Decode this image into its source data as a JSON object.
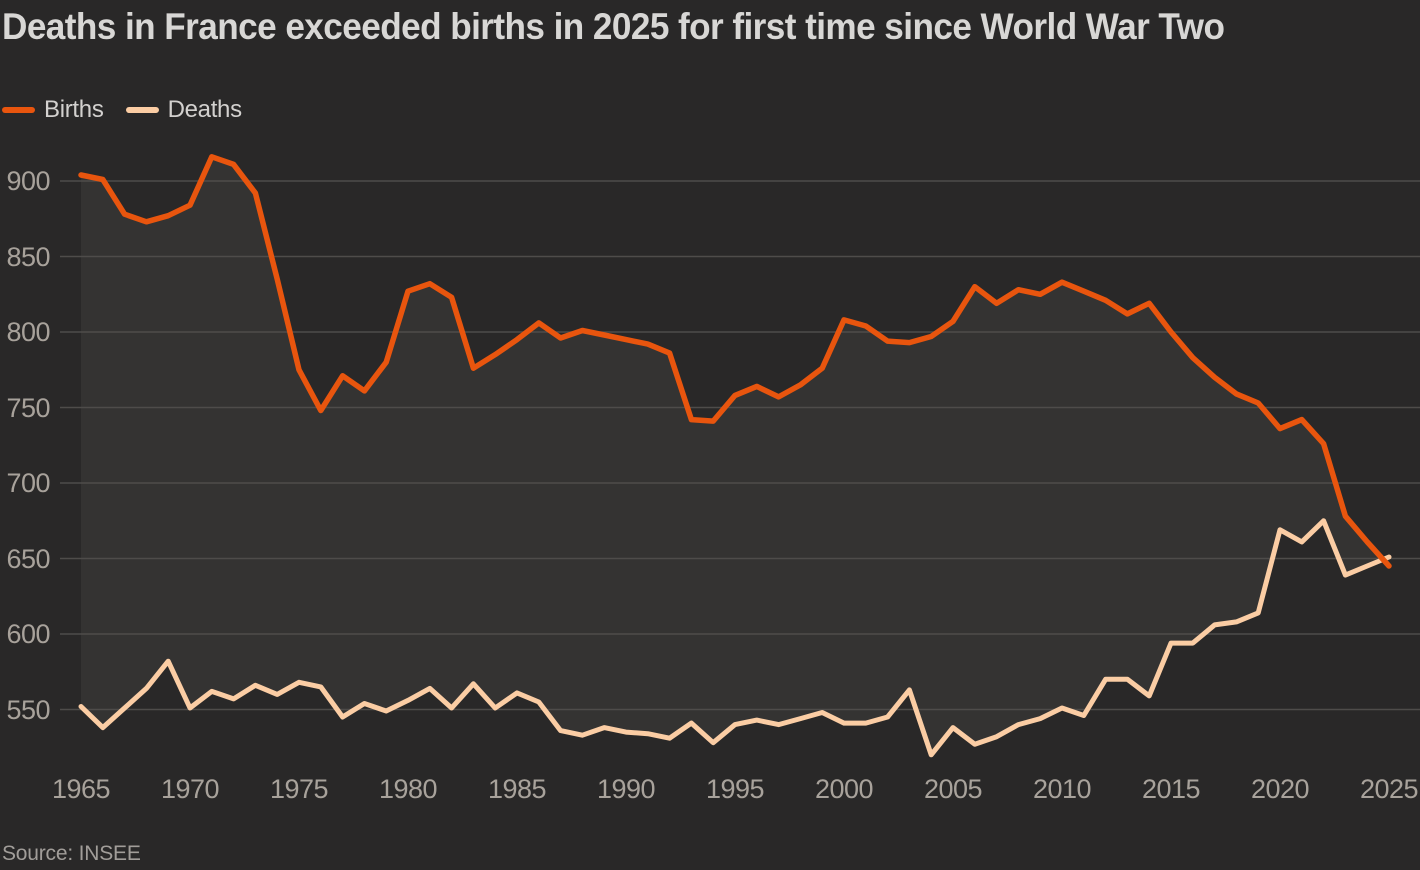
{
  "title": "Deaths in France exceeded births in 2025 for first time since World War Two",
  "source": "Source: INSEE",
  "legend": [
    {
      "label": "Births",
      "color": "#e8550e"
    },
    {
      "label": "Deaths",
      "color": "#fbcda4"
    }
  ],
  "colors": {
    "background": "#292828",
    "band_fill": "#343332",
    "gridline": "#4e4c4a",
    "births_line": "#e8550e",
    "deaths_line": "#fbcda4",
    "tick_text": "#a8a29b",
    "title_text": "#d8d7d5",
    "source_text": "#a19d99"
  },
  "chart_data": {
    "type": "line",
    "title": "Deaths in France exceeded births in 2025 for first time since World War Two",
    "xlabel": "",
    "ylabel": "",
    "unit": "thousands",
    "grid": "horizontal",
    "legend_position": "top-left",
    "xlim": [
      1965,
      2025
    ],
    "ylim": [
      520,
      920
    ],
    "yticks": [
      550,
      600,
      650,
      700,
      750,
      800,
      850,
      900
    ],
    "xticks": [
      1965,
      1970,
      1975,
      1980,
      1985,
      1990,
      1995,
      2000,
      2005,
      2010,
      2015,
      2020,
      2025
    ],
    "area_between_series": true,
    "x": [
      1965,
      1966,
      1967,
      1968,
      1969,
      1970,
      1971,
      1972,
      1973,
      1974,
      1975,
      1976,
      1977,
      1978,
      1979,
      1980,
      1981,
      1982,
      1983,
      1984,
      1985,
      1986,
      1987,
      1988,
      1989,
      1990,
      1991,
      1992,
      1993,
      1994,
      1995,
      1996,
      1997,
      1998,
      1999,
      2000,
      2001,
      2002,
      2003,
      2004,
      2005,
      2006,
      2007,
      2008,
      2009,
      2010,
      2011,
      2012,
      2013,
      2014,
      2015,
      2016,
      2017,
      2018,
      2019,
      2020,
      2021,
      2022,
      2023,
      2024,
      2025
    ],
    "series": [
      {
        "name": "Births",
        "color": "#e8550e",
        "values": [
          904,
          901,
          878,
          873,
          877,
          884,
          916,
          911,
          892,
          835,
          775,
          748,
          771,
          761,
          780,
          827,
          832,
          823,
          776,
          785,
          795,
          806,
          796,
          801,
          798,
          795,
          792,
          786,
          742,
          741,
          758,
          764,
          757,
          765,
          776,
          808,
          804,
          794,
          793,
          797,
          807,
          830,
          819,
          828,
          825,
          833,
          827,
          821,
          812,
          819,
          800,
          783,
          770,
          759,
          753,
          736,
          742,
          726,
          678,
          661,
          645
        ]
      },
      {
        "name": "Deaths",
        "color": "#fbcda4",
        "values": [
          552,
          538,
          551,
          564,
          582,
          551,
          562,
          557,
          566,
          560,
          568,
          565,
          545,
          554,
          549,
          556,
          564,
          551,
          567,
          551,
          561,
          555,
          536,
          533,
          538,
          535,
          534,
          531,
          541,
          528,
          540,
          543,
          540,
          544,
          548,
          541,
          541,
          545,
          563,
          520,
          538,
          527,
          532,
          540,
          544,
          551,
          546,
          570,
          570,
          559,
          594,
          594,
          606,
          608,
          614,
          669,
          661,
          675,
          639,
          645,
          651
        ]
      }
    ]
  }
}
